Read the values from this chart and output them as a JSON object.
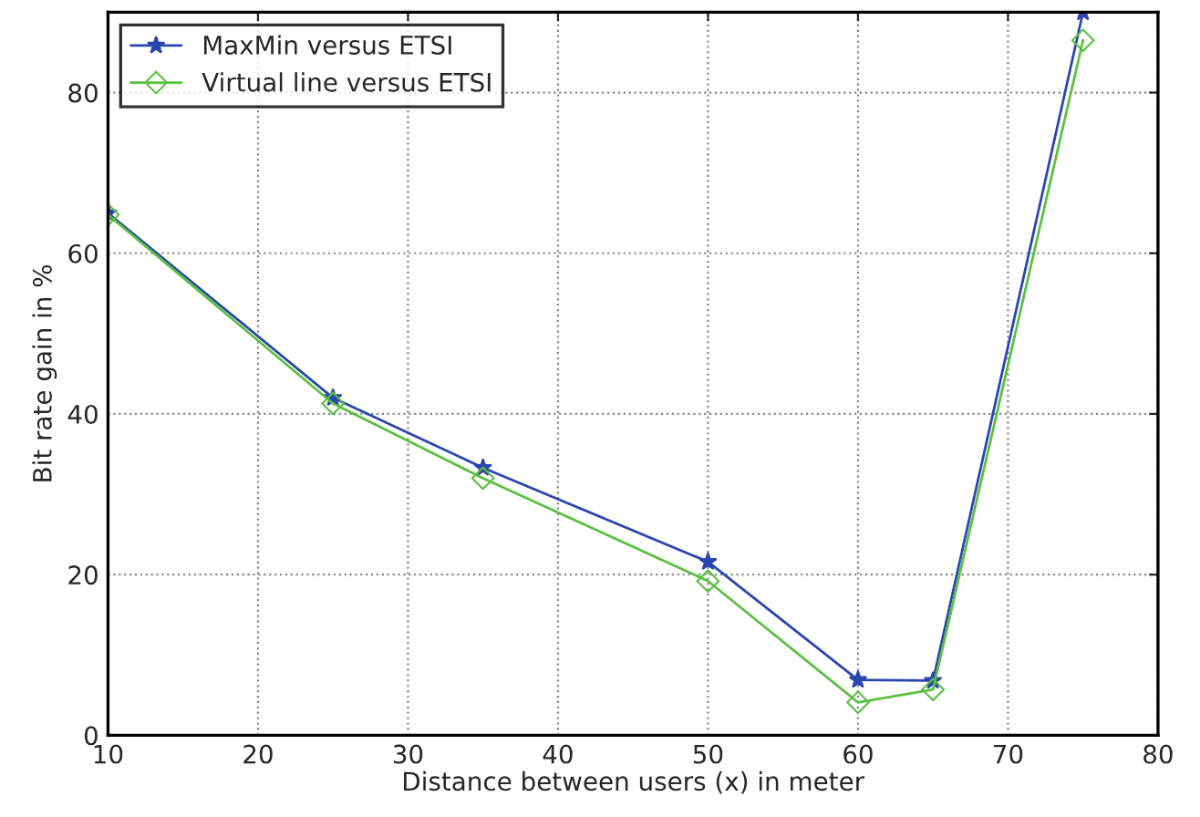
{
  "chart_data": {
    "type": "line",
    "xlabel": "Distance between users (x) in meter",
    "ylabel": "Bit rate gain in %",
    "x": [
      10,
      25,
      35,
      50,
      60,
      65,
      75
    ],
    "series": [
      {
        "name": "MaxMin versus ETSI",
        "color": "#2a45b0",
        "marker": "star",
        "values": [
          65,
          42,
          33.3,
          21.6,
          6.9,
          6.8,
          90
        ]
      },
      {
        "name": "Virtual line versus ETSI",
        "color": "#5ac040",
        "marker": "diamond",
        "values": [
          64.8,
          41.3,
          32,
          19.2,
          4.1,
          5.7,
          86.5
        ]
      }
    ],
    "xlim": [
      10,
      80
    ],
    "ylim": [
      0,
      90
    ],
    "xticks": [
      10,
      20,
      30,
      40,
      50,
      60,
      70,
      80
    ],
    "yticks": [
      0,
      20,
      40,
      60,
      80
    ],
    "grid": true,
    "legend": "top left",
    "line_style": "solid"
  }
}
